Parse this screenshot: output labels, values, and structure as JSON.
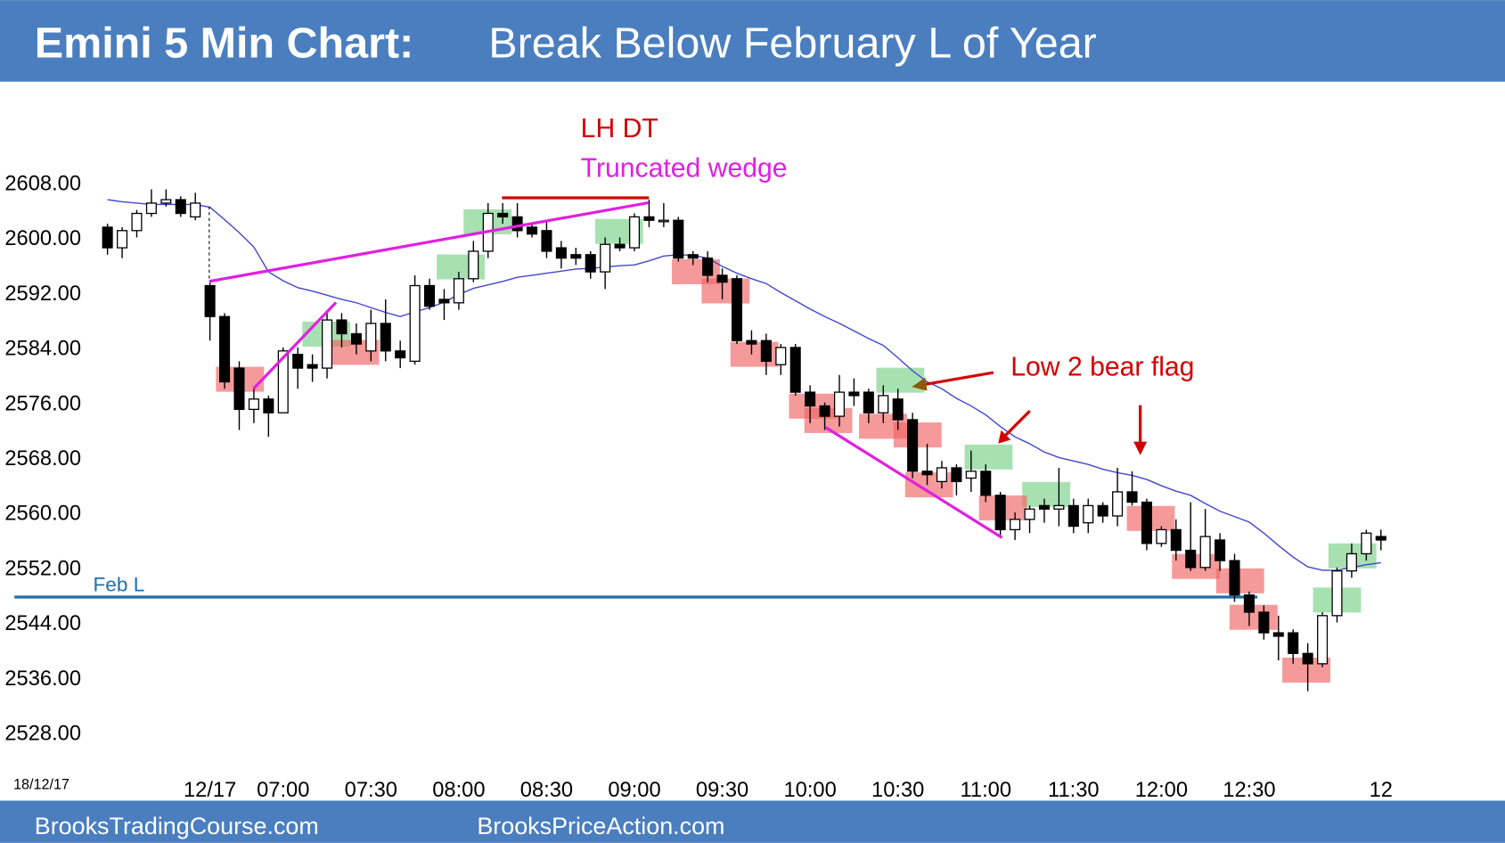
{
  "chart_data": {
    "type": "candlestick",
    "title": "Emini 5 Min Chart:",
    "subtitle": "Break Below February L of Year",
    "date_label": "18/12/17",
    "categories": [
      null,
      null,
      null,
      null,
      null,
      null,
      null,
      "12/17",
      null,
      null,
      null,
      null,
      "07:00",
      null,
      null,
      null,
      null,
      null,
      "07:30",
      null,
      null,
      null,
      null,
      null,
      "08:00",
      null,
      null,
      null,
      null,
      null,
      "08:30",
      null,
      null,
      null,
      null,
      null,
      "09:00",
      null,
      null,
      null,
      null,
      null,
      "09:30",
      null,
      null,
      null,
      null,
      null,
      "10:00",
      null,
      null,
      null,
      null,
      null,
      "10:30",
      null,
      null,
      null,
      null,
      null,
      "11:00",
      null,
      null,
      null,
      null,
      null,
      "11:30",
      null,
      null,
      null,
      null,
      null,
      "12:00",
      null,
      null,
      null,
      null,
      null,
      "12:30",
      null,
      null,
      null,
      null,
      null,
      null,
      null,
      null,
      "12"
    ],
    "open": [
      2601.5,
      2598.5,
      2601,
      2603.5,
      2605,
      2605.5,
      2603,
      2593,
      2588.5,
      2581,
      2575,
      2576.5,
      2574.5,
      2583,
      2581.5,
      2581,
      2588,
      2586,
      2583.5,
      2587.5,
      2583.5,
      2582,
      2593,
      2591,
      2590.5,
      2594,
      2598,
      2603.5,
      2603,
      2601.5,
      2601,
      2598.5,
      2597.5,
      2597.5,
      2595,
      2599,
      2598.5,
      2603,
      2602.5,
      2602.5,
      2597.5,
      2597,
      2594.5,
      2594,
      2585,
      2585,
      2581.5,
      2584,
      2577.5,
      2575.5,
      2574,
      2577.5,
      2577.5,
      2574.5,
      2576.5,
      2573.5,
      2566,
      2564.5,
      2566.5,
      2565,
      2566,
      2562.5,
      2557.5,
      2559,
      2561,
      2560.5,
      2561,
      2558.5,
      2561,
      2559.5,
      2563,
      2561.5,
      2555.5,
      2557.5,
      2554.5,
      2552,
      2556,
      2553,
      2548,
      2545.5,
      2542.5,
      2542.5,
      2539.5,
      2538,
      2545,
      2551.5,
      2554,
      2556.5
    ],
    "high": [
      2602,
      2601.5,
      2604,
      2607,
      2607,
      2606,
      2606.5,
      2593.5,
      2589,
      2582,
      2578,
      2577,
      2584,
      2584,
      2583,
      2589,
      2589,
      2587.5,
      2589.5,
      2591,
      2585,
      2594.5,
      2594,
      2592.5,
      2595,
      2599.5,
      2605,
      2605,
      2605,
      2602,
      2602.5,
      2599.5,
      2598.5,
      2598,
      2600,
      2600,
      2603.5,
      2605.5,
      2605,
      2603,
      2598,
      2598,
      2595.5,
      2594.5,
      2586.5,
      2586,
      2584.5,
      2584.5,
      2578.5,
      2576,
      2580,
      2579.5,
      2578,
      2578.5,
      2578,
      2574.5,
      2570,
      2567.5,
      2567,
      2569,
      2567,
      2563,
      2560,
      2561,
      2562,
      2566.5,
      2562,
      2562,
      2561.5,
      2566.5,
      2566,
      2562,
      2558,
      2559,
      2561.5,
      2560.5,
      2557,
      2554,
      2548.5,
      2546.5,
      2545,
      2543,
      2541,
      2545.5,
      2552,
      2555.5,
      2557.5,
      2557.5
    ],
    "low": [
      2597.5,
      2597,
      2600,
      2603,
      2604.5,
      2603,
      2602.5,
      2585,
      2578,
      2572,
      2573,
      2571,
      2574.5,
      2578,
      2579,
      2579.5,
      2584,
      2583,
      2582,
      2582,
      2581,
      2581.5,
      2589.5,
      2588,
      2589.5,
      2593.5,
      2597,
      2602,
      2600,
      2600,
      2597,
      2595.5,
      2596,
      2594,
      2592.5,
      2598,
      2598,
      2601.5,
      2601.5,
      2596.5,
      2596,
      2593.5,
      2591,
      2584.5,
      2583,
      2580,
      2580,
      2577,
      2573,
      2572,
      2572.5,
      2575.5,
      2573,
      2573,
      2572,
      2565,
      2564,
      2563.5,
      2562.5,
      2563,
      2561.5,
      2556.5,
      2556,
      2557,
      2558.5,
      2558,
      2557,
      2557,
      2558.5,
      2558,
      2561,
      2554.5,
      2555,
      2553,
      2551.5,
      2551.5,
      2551.5,
      2547,
      2543.5,
      2541.5,
      2538.5,
      2538,
      2534,
      2537.5,
      2544,
      2550.5,
      2553,
      2554.5
    ],
    "close": [
      2598.5,
      2601,
      2603.5,
      2605,
      2605.5,
      2603.5,
      2605,
      2588.5,
      2579,
      2575,
      2576.5,
      2574.5,
      2583.5,
      2581,
      2581,
      2588,
      2586,
      2584.5,
      2587.5,
      2583.5,
      2582.5,
      2593,
      2590,
      2590.5,
      2594,
      2598,
      2603.5,
      2603,
      2601,
      2600.5,
      2598,
      2597,
      2597,
      2595,
      2599,
      2598.5,
      2603,
      2602.5,
      2602.5,
      2597,
      2597,
      2594.5,
      2593.5,
      2585,
      2584.5,
      2582,
      2584,
      2577.5,
      2575.5,
      2574,
      2577.5,
      2577,
      2574.5,
      2577,
      2573.5,
      2566,
      2565.5,
      2566.5,
      2564.5,
      2566,
      2562.5,
      2557.5,
      2559,
      2560.5,
      2560.5,
      2561,
      2558,
      2561,
      2559.5,
      2563,
      2561.5,
      2555.5,
      2557.5,
      2554.5,
      2552,
      2556.5,
      2553,
      2548,
      2545.5,
      2542.5,
      2542,
      2539.5,
      2538,
      2545,
      2551.5,
      2554,
      2557,
      2556
    ],
    "ma_values": [
      2605.5,
      2605.2,
      2605,
      2604.8,
      2604.8,
      2604.8,
      2604.8,
      2604.4,
      2602.6,
      2600.7,
      2598.6,
      2595,
      2593.7,
      2592.7,
      2592.2,
      2591.6,
      2591,
      2590.5,
      2589.8,
      2589.1,
      2588.5,
      2589.2,
      2589.8,
      2590.6,
      2591.7,
      2592.6,
      2593.1,
      2593.6,
      2594.2,
      2594.5,
      2594.8,
      2595.1,
      2595.4,
      2595.5,
      2595.7,
      2595.9,
      2596,
      2596.6,
      2597.3,
      2597.5,
      2597.4,
      2597,
      2595.8,
      2594.8,
      2594,
      2593.3,
      2592,
      2590.8,
      2589.6,
      2588.5,
      2587.5,
      2586.4,
      2585.3,
      2584.3,
      2582.5,
      2580.6,
      2579,
      2578,
      2576.6,
      2575.5,
      2574.2,
      2572.5,
      2571,
      2570,
      2568.8,
      2568,
      2567.5,
      2567,
      2566.3,
      2565.8,
      2565.4,
      2564.8,
      2563.9,
      2563.1,
      2562.5,
      2561.3,
      2560.2,
      2559.4,
      2558.6,
      2557,
      2555.2,
      2553.5,
      2552.1,
      2551.6,
      2551.6,
      2552,
      2552.4,
      2552.7
    ],
    "ma_color": "#3f48cc",
    "up_color": "#ffffff",
    "down_color": "#000000",
    "ylim": [
      2523,
      2620
    ],
    "yticks": [
      {
        "value": 2528,
        "label": "2528.00"
      },
      {
        "value": 2536,
        "label": "2536.00"
      },
      {
        "value": 2544,
        "label": "2544.00"
      },
      {
        "value": 2552,
        "label": "2552.00"
      },
      {
        "value": 2560,
        "label": "2560.00"
      },
      {
        "value": 2568,
        "label": "2568.00"
      },
      {
        "value": 2576,
        "label": "2576.00"
      },
      {
        "value": 2584,
        "label": "2584.00"
      },
      {
        "value": 2592,
        "label": "2592.00"
      },
      {
        "value": 2600,
        "label": "2600.00"
      },
      {
        "value": 2608,
        "label": "2608.00"
      }
    ],
    "feb_low": {
      "label": "Feb L",
      "value": 2547.7,
      "color": "#1f6fa8"
    },
    "annotations": {
      "lh_dt": "LH DT",
      "truncated_wedge": "Truncated wedge",
      "low2": "Low 2 bear flag"
    }
  },
  "footer": {
    "left": "BrooksTradingCourse.com",
    "right": "BrooksPriceAction.com"
  }
}
